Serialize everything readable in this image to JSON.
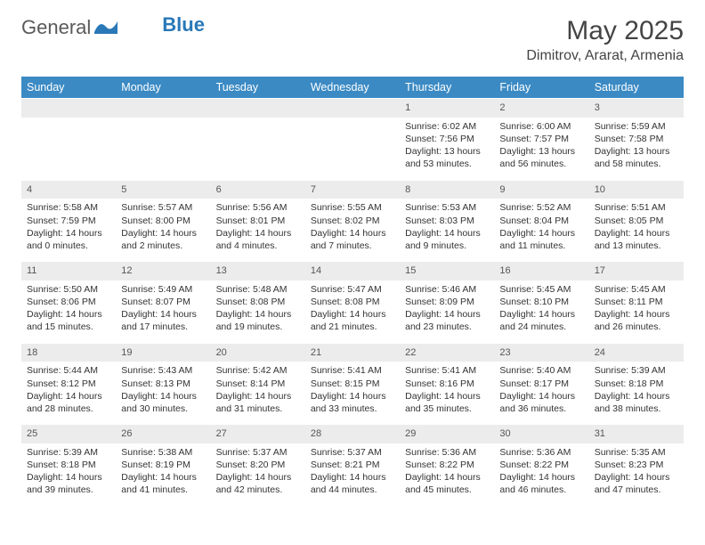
{
  "brand": {
    "textA": "General",
    "textB": "Blue",
    "logo_color": "#2978b8"
  },
  "header": {
    "title": "May 2025",
    "location": "Dimitrov, Ararat, Armenia"
  },
  "colors": {
    "header_bg": "#3b8ac4",
    "header_text": "#ffffff",
    "daynum_bg": "#ececec",
    "text": "#333333",
    "title_text": "#444444"
  },
  "typography": {
    "title_fontsize": 30,
    "location_fontsize": 16,
    "dayheader_fontsize": 12.5,
    "cell_fontsize": 10.5
  },
  "day_headers": [
    "Sunday",
    "Monday",
    "Tuesday",
    "Wednesday",
    "Thursday",
    "Friday",
    "Saturday"
  ],
  "weeks": [
    [
      null,
      null,
      null,
      null,
      {
        "n": "1",
        "sr": "6:02 AM",
        "ss": "7:56 PM",
        "dlA": "Daylight: 13 hours",
        "dlB": "and 53 minutes."
      },
      {
        "n": "2",
        "sr": "6:00 AM",
        "ss": "7:57 PM",
        "dlA": "Daylight: 13 hours",
        "dlB": "and 56 minutes."
      },
      {
        "n": "3",
        "sr": "5:59 AM",
        "ss": "7:58 PM",
        "dlA": "Daylight: 13 hours",
        "dlB": "and 58 minutes."
      }
    ],
    [
      {
        "n": "4",
        "sr": "5:58 AM",
        "ss": "7:59 PM",
        "dlA": "Daylight: 14 hours",
        "dlB": "and 0 minutes."
      },
      {
        "n": "5",
        "sr": "5:57 AM",
        "ss": "8:00 PM",
        "dlA": "Daylight: 14 hours",
        "dlB": "and 2 minutes."
      },
      {
        "n": "6",
        "sr": "5:56 AM",
        "ss": "8:01 PM",
        "dlA": "Daylight: 14 hours",
        "dlB": "and 4 minutes."
      },
      {
        "n": "7",
        "sr": "5:55 AM",
        "ss": "8:02 PM",
        "dlA": "Daylight: 14 hours",
        "dlB": "and 7 minutes."
      },
      {
        "n": "8",
        "sr": "5:53 AM",
        "ss": "8:03 PM",
        "dlA": "Daylight: 14 hours",
        "dlB": "and 9 minutes."
      },
      {
        "n": "9",
        "sr": "5:52 AM",
        "ss": "8:04 PM",
        "dlA": "Daylight: 14 hours",
        "dlB": "and 11 minutes."
      },
      {
        "n": "10",
        "sr": "5:51 AM",
        "ss": "8:05 PM",
        "dlA": "Daylight: 14 hours",
        "dlB": "and 13 minutes."
      }
    ],
    [
      {
        "n": "11",
        "sr": "5:50 AM",
        "ss": "8:06 PM",
        "dlA": "Daylight: 14 hours",
        "dlB": "and 15 minutes."
      },
      {
        "n": "12",
        "sr": "5:49 AM",
        "ss": "8:07 PM",
        "dlA": "Daylight: 14 hours",
        "dlB": "and 17 minutes."
      },
      {
        "n": "13",
        "sr": "5:48 AM",
        "ss": "8:08 PM",
        "dlA": "Daylight: 14 hours",
        "dlB": "and 19 minutes."
      },
      {
        "n": "14",
        "sr": "5:47 AM",
        "ss": "8:08 PM",
        "dlA": "Daylight: 14 hours",
        "dlB": "and 21 minutes."
      },
      {
        "n": "15",
        "sr": "5:46 AM",
        "ss": "8:09 PM",
        "dlA": "Daylight: 14 hours",
        "dlB": "and 23 minutes."
      },
      {
        "n": "16",
        "sr": "5:45 AM",
        "ss": "8:10 PM",
        "dlA": "Daylight: 14 hours",
        "dlB": "and 24 minutes."
      },
      {
        "n": "17",
        "sr": "5:45 AM",
        "ss": "8:11 PM",
        "dlA": "Daylight: 14 hours",
        "dlB": "and 26 minutes."
      }
    ],
    [
      {
        "n": "18",
        "sr": "5:44 AM",
        "ss": "8:12 PM",
        "dlA": "Daylight: 14 hours",
        "dlB": "and 28 minutes."
      },
      {
        "n": "19",
        "sr": "5:43 AM",
        "ss": "8:13 PM",
        "dlA": "Daylight: 14 hours",
        "dlB": "and 30 minutes."
      },
      {
        "n": "20",
        "sr": "5:42 AM",
        "ss": "8:14 PM",
        "dlA": "Daylight: 14 hours",
        "dlB": "and 31 minutes."
      },
      {
        "n": "21",
        "sr": "5:41 AM",
        "ss": "8:15 PM",
        "dlA": "Daylight: 14 hours",
        "dlB": "and 33 minutes."
      },
      {
        "n": "22",
        "sr": "5:41 AM",
        "ss": "8:16 PM",
        "dlA": "Daylight: 14 hours",
        "dlB": "and 35 minutes."
      },
      {
        "n": "23",
        "sr": "5:40 AM",
        "ss": "8:17 PM",
        "dlA": "Daylight: 14 hours",
        "dlB": "and 36 minutes."
      },
      {
        "n": "24",
        "sr": "5:39 AM",
        "ss": "8:18 PM",
        "dlA": "Daylight: 14 hours",
        "dlB": "and 38 minutes."
      }
    ],
    [
      {
        "n": "25",
        "sr": "5:39 AM",
        "ss": "8:18 PM",
        "dlA": "Daylight: 14 hours",
        "dlB": "and 39 minutes."
      },
      {
        "n": "26",
        "sr": "5:38 AM",
        "ss": "8:19 PM",
        "dlA": "Daylight: 14 hours",
        "dlB": "and 41 minutes."
      },
      {
        "n": "27",
        "sr": "5:37 AM",
        "ss": "8:20 PM",
        "dlA": "Daylight: 14 hours",
        "dlB": "and 42 minutes."
      },
      {
        "n": "28",
        "sr": "5:37 AM",
        "ss": "8:21 PM",
        "dlA": "Daylight: 14 hours",
        "dlB": "and 44 minutes."
      },
      {
        "n": "29",
        "sr": "5:36 AM",
        "ss": "8:22 PM",
        "dlA": "Daylight: 14 hours",
        "dlB": "and 45 minutes."
      },
      {
        "n": "30",
        "sr": "5:36 AM",
        "ss": "8:22 PM",
        "dlA": "Daylight: 14 hours",
        "dlB": "and 46 minutes."
      },
      {
        "n": "31",
        "sr": "5:35 AM",
        "ss": "8:23 PM",
        "dlA": "Daylight: 14 hours",
        "dlB": "and 47 minutes."
      }
    ]
  ],
  "labels": {
    "sunrise": "Sunrise: ",
    "sunset": "Sunset: "
  }
}
